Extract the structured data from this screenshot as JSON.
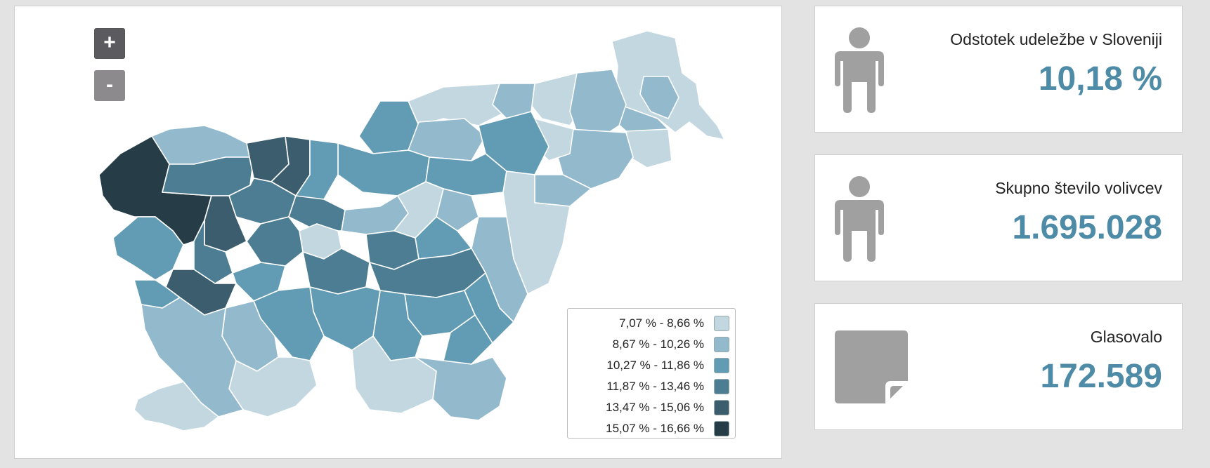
{
  "map": {
    "zoom_in_label": "+",
    "zoom_out_label": "-",
    "legend": [
      {
        "label": "7,07 % - 8,66 %",
        "color": "#c2d7e0"
      },
      {
        "label": "8,67 % - 10,26 %",
        "color": "#93b9cc"
      },
      {
        "label": "10,27 % - 11,86 %",
        "color": "#629cb4"
      },
      {
        "label": "11,87 % - 13,46 %",
        "color": "#4d7d92"
      },
      {
        "label": "13,47 % - 15,06 %",
        "color": "#3b5d6d"
      },
      {
        "label": "15,07 % - 16,66 %",
        "color": "#263d48"
      }
    ]
  },
  "stats": [
    {
      "label": "Odstotek udeležbe v Sloveniji",
      "value": "10,18 %",
      "icon": "person-icon"
    },
    {
      "label": "Skupno število volivcev",
      "value": "1.695.028",
      "icon": "person-icon"
    },
    {
      "label": "Glasovalo",
      "value": "172.589",
      "icon": "ballot-icon"
    }
  ],
  "colors": {
    "accent": "#4e8ba7",
    "icon": "#a0a0a0"
  }
}
